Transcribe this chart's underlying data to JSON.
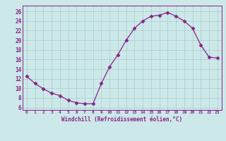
{
  "x": [
    0,
    1,
    2,
    3,
    4,
    5,
    6,
    7,
    8,
    9,
    10,
    11,
    12,
    13,
    14,
    15,
    16,
    17,
    18,
    19,
    20,
    21,
    22,
    23
  ],
  "y": [
    12.5,
    11.0,
    9.9,
    9.0,
    8.5,
    7.5,
    7.0,
    6.8,
    6.8,
    11.0,
    14.5,
    17.0,
    20.0,
    22.5,
    24.0,
    25.0,
    25.2,
    25.8,
    25.0,
    24.0,
    22.5,
    19.0,
    16.5,
    16.3
  ],
  "line_color": "#882288",
  "marker": "D",
  "marker_size": 2.5,
  "bg_color": "#cce8e8",
  "grid_color": "#aacccc",
  "xlabel": "Windchill (Refroidissement éolien,°C)",
  "ylabel_ticks": [
    6,
    8,
    10,
    12,
    14,
    16,
    18,
    20,
    22,
    24,
    26
  ],
  "xtick_labels": [
    "0",
    "1",
    "2",
    "3",
    "4",
    "5",
    "6",
    "7",
    "8",
    "9",
    "10",
    "11",
    "12",
    "13",
    "14",
    "15",
    "16",
    "17",
    "18",
    "19",
    "20",
    "21",
    "22",
    "23"
  ],
  "ylim": [
    5.5,
    27.2
  ],
  "xlim": [
    -0.5,
    23.5
  ]
}
